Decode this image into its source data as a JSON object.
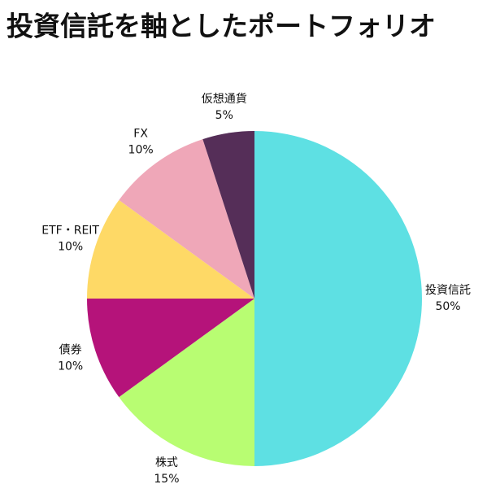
{
  "chart_data": {
    "type": "pie",
    "title": "投資信託を軸としたポートフォリオ",
    "categories": [
      "投資信託",
      "株式",
      "債券",
      "ETF・REIT",
      "FX",
      "仮想通貨"
    ],
    "values": [
      50,
      15,
      10,
      10,
      10,
      5
    ],
    "value_labels": [
      "50%",
      "15%",
      "10%",
      "10%",
      "10%",
      "5%"
    ],
    "colors": [
      "#5ee0e3",
      "#b8fd72",
      "#b5137a",
      "#fed966",
      "#efa7b8",
      "#552e58"
    ]
  }
}
